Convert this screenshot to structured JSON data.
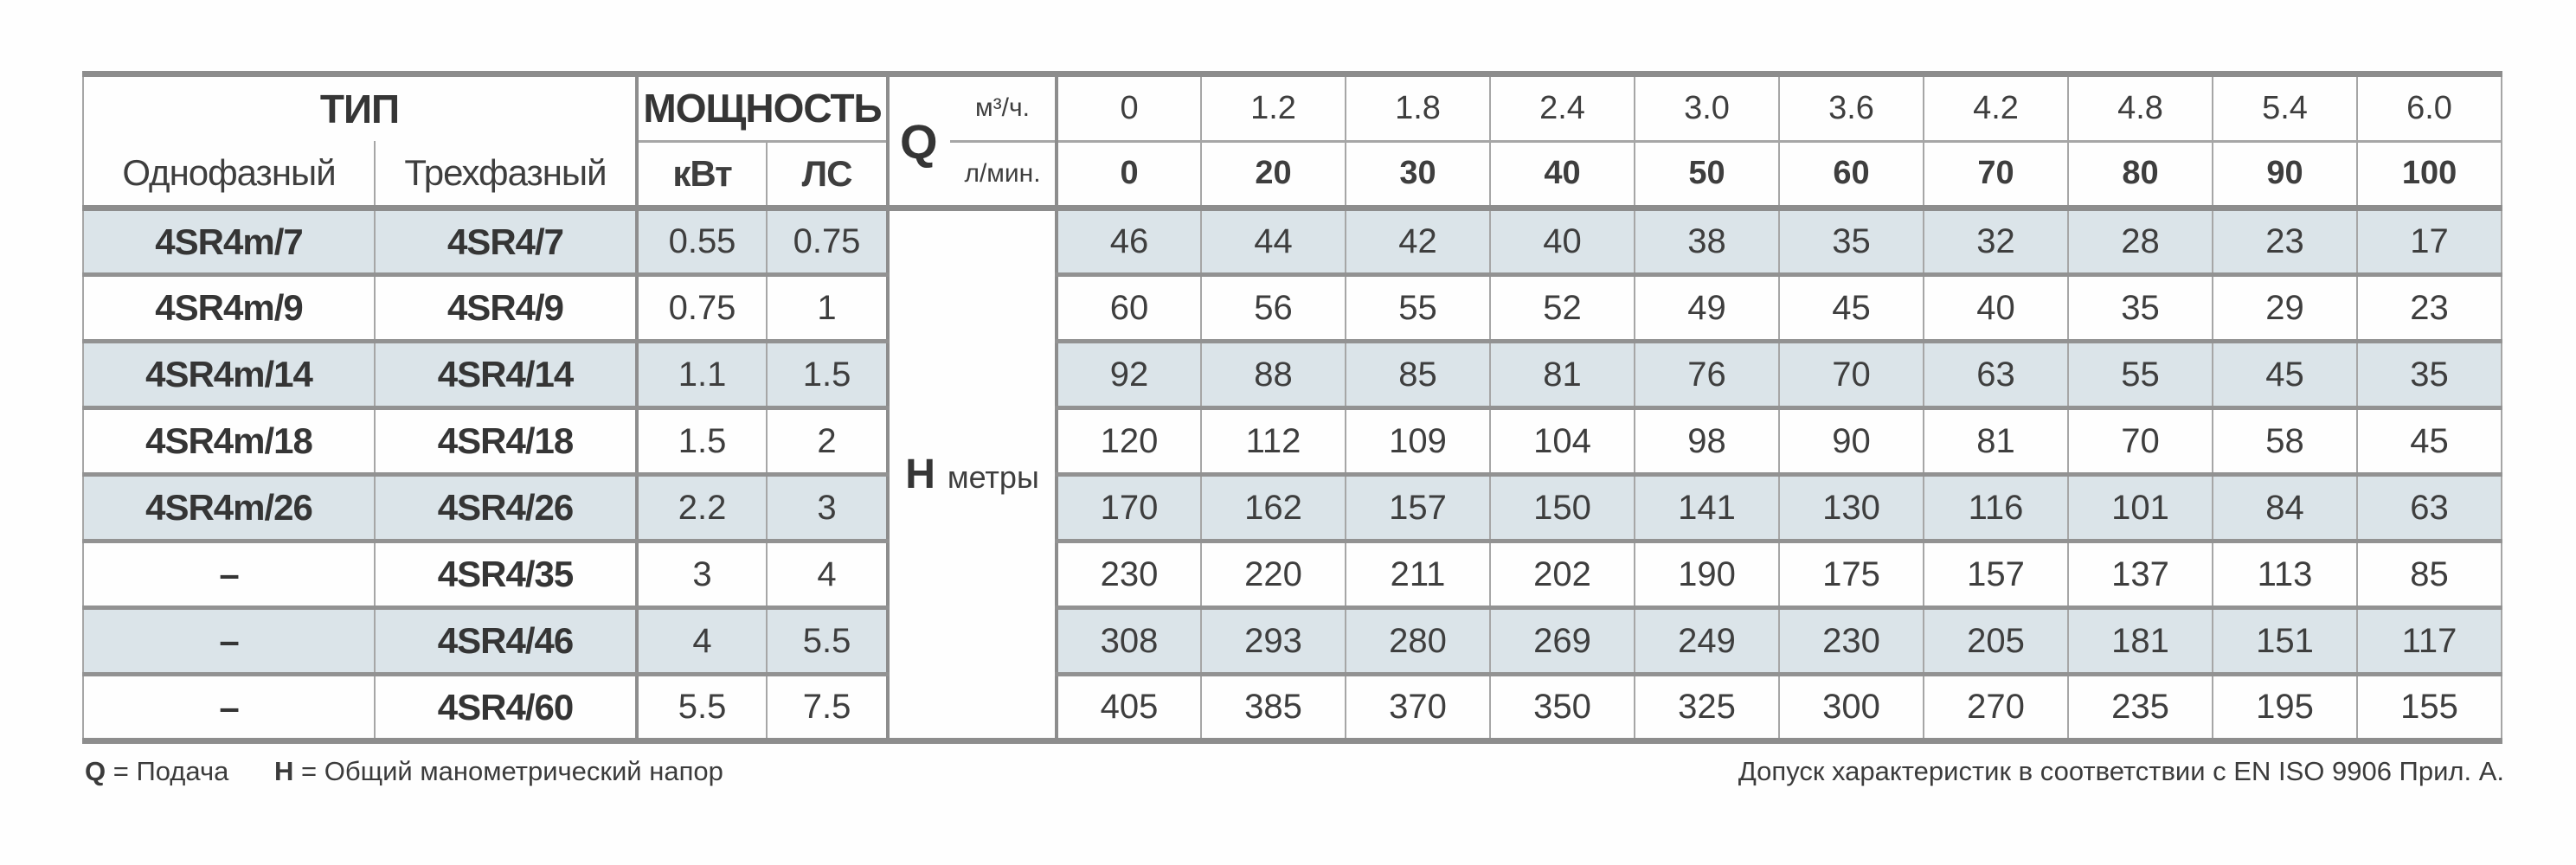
{
  "colors": {
    "shaded": "#dbe4e9",
    "border-thick": "#8d8d8d",
    "border-thin": "#a6a6a6",
    "border-row": "#929292",
    "text": "#3e3e3e"
  },
  "table": {
    "type_group": {
      "title": "ТИП",
      "cols": [
        "Однофазный",
        "Трехфазный"
      ]
    },
    "power_group": {
      "title": "МОЩНОСТЬ",
      "cols": [
        "кВт",
        "ЛС"
      ]
    },
    "q": {
      "label": "Q",
      "unit_top": "м³/ч.",
      "unit_bottom": "л/мин."
    },
    "h": {
      "label": "Н",
      "unit": "метры"
    },
    "flow_m3h": [
      "0",
      "1.2",
      "1.8",
      "2.4",
      "3.0",
      "3.6",
      "4.2",
      "4.8",
      "5.4",
      "6.0"
    ],
    "flow_lmin": [
      "0",
      "20",
      "30",
      "40",
      "50",
      "60",
      "70",
      "80",
      "90",
      "100"
    ],
    "rows": [
      {
        "single": "4SR4m/7",
        "three": "4SR4/7",
        "kw": "0.55",
        "hp": "0.75",
        "head": [
          "46",
          "44",
          "42",
          "40",
          "38",
          "35",
          "32",
          "28",
          "23",
          "17"
        ]
      },
      {
        "single": "4SR4m/9",
        "three": "4SR4/9",
        "kw": "0.75",
        "hp": "1",
        "head": [
          "60",
          "56",
          "55",
          "52",
          "49",
          "45",
          "40",
          "35",
          "29",
          "23"
        ]
      },
      {
        "single": "4SR4m/14",
        "three": "4SR4/14",
        "kw": "1.1",
        "hp": "1.5",
        "head": [
          "92",
          "88",
          "85",
          "81",
          "76",
          "70",
          "63",
          "55",
          "45",
          "35"
        ]
      },
      {
        "single": "4SR4m/18",
        "three": "4SR4/18",
        "kw": "1.5",
        "hp": "2",
        "head": [
          "120",
          "112",
          "109",
          "104",
          "98",
          "90",
          "81",
          "70",
          "58",
          "45"
        ]
      },
      {
        "single": "4SR4m/26",
        "three": "4SR4/26",
        "kw": "2.2",
        "hp": "3",
        "head": [
          "170",
          "162",
          "157",
          "150",
          "141",
          "130",
          "116",
          "101",
          "84",
          "63"
        ]
      },
      {
        "single": "–",
        "three": "4SR4/35",
        "kw": "3",
        "hp": "4",
        "head": [
          "230",
          "220",
          "211",
          "202",
          "190",
          "175",
          "157",
          "137",
          "113",
          "85"
        ]
      },
      {
        "single": "–",
        "three": "4SR4/46",
        "kw": "4",
        "hp": "5.5",
        "head": [
          "308",
          "293",
          "280",
          "269",
          "249",
          "230",
          "205",
          "181",
          "151",
          "117"
        ]
      },
      {
        "single": "–",
        "three": "4SR4/60",
        "kw": "5.5",
        "hp": "7.5",
        "head": [
          "405",
          "385",
          "370",
          "350",
          "325",
          "300",
          "270",
          "235",
          "195",
          "155"
        ]
      }
    ]
  },
  "footer": {
    "legend": [
      {
        "sym": "Q",
        "text": "= Подача"
      },
      {
        "sym": "Н",
        "text": "= Общий манометрический напор"
      }
    ],
    "tolerance": "Допуск характеристик в соответствии с EN ISO 9906 Прил. A."
  }
}
